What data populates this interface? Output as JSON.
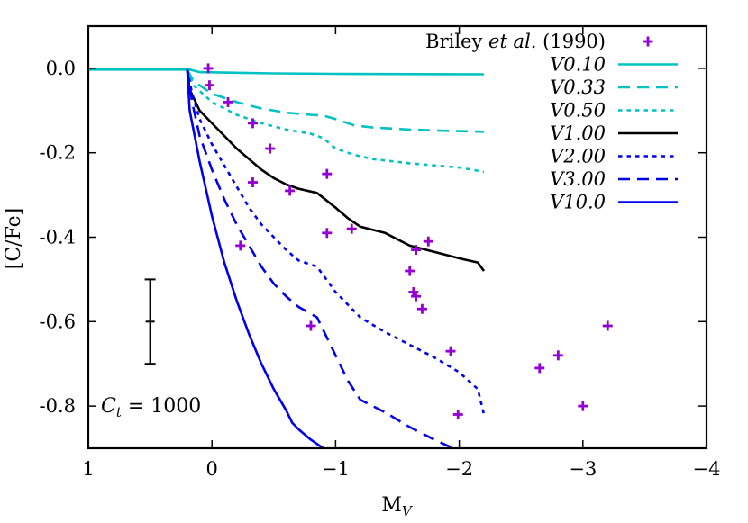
{
  "chart_data": {
    "type": "line",
    "xlabel": "M",
    "xlabel_sub": "V",
    "ylabel": "[C/Fe]",
    "xlim": [
      1,
      -4
    ],
    "ylim": [
      -0.9,
      0.1
    ],
    "x_reversed": true,
    "x_ticks": [
      {
        "value": 1,
        "label": "1"
      },
      {
        "value": 0,
        "label": "0"
      },
      {
        "value": -1,
        "label": "−1"
      },
      {
        "value": -2,
        "label": "−2"
      },
      {
        "value": -3,
        "label": "−3"
      },
      {
        "value": -4,
        "label": "−4"
      }
    ],
    "y_ticks": [
      {
        "value": 0.0,
        "label": "0.0"
      },
      {
        "value": -0.2,
        "label": "-0.2"
      },
      {
        "value": -0.4,
        "label": "-0.4"
      },
      {
        "value": -0.6,
        "label": "-0.6"
      },
      {
        "value": -0.8,
        "label": "-0.8"
      }
    ],
    "grid": false,
    "legend_position": "top-right",
    "annotation": {
      "symbol": "C",
      "subscript": "t",
      "rest": " = 1000"
    },
    "error_bar": {
      "x": 0.5,
      "y": -0.6,
      "ylow": -0.7,
      "yhigh": -0.5
    },
    "scatter": {
      "name_prefix": "Briley ",
      "name_italic": "et al.",
      "name_suffix": " (1990)",
      "color": "#9400d3",
      "points": [
        [
          0.03,
          0.0
        ],
        [
          0.02,
          -0.04
        ],
        [
          -0.13,
          -0.08
        ],
        [
          -0.33,
          -0.13
        ],
        [
          -0.33,
          -0.27
        ],
        [
          -0.47,
          -0.19
        ],
        [
          -0.23,
          -0.42
        ],
        [
          -0.63,
          -0.29
        ],
        [
          -0.93,
          -0.25
        ],
        [
          -0.93,
          -0.39
        ],
        [
          -1.13,
          -0.38
        ],
        [
          -0.8,
          -0.61
        ],
        [
          -1.6,
          -0.48
        ],
        [
          -1.63,
          -0.53
        ],
        [
          -1.65,
          -0.54
        ],
        [
          -1.65,
          -0.43
        ],
        [
          -1.7,
          -0.57
        ],
        [
          -1.75,
          -0.41
        ],
        [
          -1.93,
          -0.67
        ],
        [
          -1.99,
          -0.82
        ],
        [
          -2.65,
          -0.71
        ],
        [
          -2.8,
          -0.68
        ],
        [
          -3.0,
          -0.8
        ],
        [
          -3.2,
          -0.61
        ]
      ]
    },
    "series": [
      {
        "name": "V0.10",
        "color": "#00c2c2",
        "dash": "solid",
        "points": [
          [
            1.0,
            -0.003
          ],
          [
            0.2,
            -0.003
          ],
          [
            0.18,
            -0.003
          ],
          [
            0.1,
            -0.009
          ],
          [
            -0.5,
            -0.012
          ],
          [
            -1.0,
            -0.013
          ],
          [
            -2.2,
            -0.014
          ]
        ]
      },
      {
        "name": "V0.33",
        "color": "#00c2c2",
        "dash": "dashed",
        "points": [
          [
            0.2,
            -0.003
          ],
          [
            0.15,
            -0.03
          ],
          [
            0.0,
            -0.06
          ],
          [
            -0.2,
            -0.08
          ],
          [
            -0.4,
            -0.095
          ],
          [
            -0.6,
            -0.105
          ],
          [
            -0.8,
            -0.11
          ],
          [
            -0.9,
            -0.112
          ],
          [
            -1.0,
            -0.12
          ],
          [
            -1.15,
            -0.135
          ],
          [
            -1.3,
            -0.14
          ],
          [
            -1.6,
            -0.145
          ],
          [
            -1.9,
            -0.148
          ],
          [
            -2.2,
            -0.15
          ]
        ]
      },
      {
        "name": "V0.50",
        "color": "#00c2c2",
        "dash": "dotted",
        "points": [
          [
            0.2,
            -0.003
          ],
          [
            0.15,
            -0.04
          ],
          [
            0.0,
            -0.08
          ],
          [
            -0.2,
            -0.11
          ],
          [
            -0.4,
            -0.13
          ],
          [
            -0.6,
            -0.145
          ],
          [
            -0.8,
            -0.155
          ],
          [
            -0.9,
            -0.165
          ],
          [
            -1.0,
            -0.19
          ],
          [
            -1.15,
            -0.205
          ],
          [
            -1.3,
            -0.215
          ],
          [
            -1.6,
            -0.225
          ],
          [
            -2.0,
            -0.235
          ],
          [
            -2.2,
            -0.245
          ]
        ]
      },
      {
        "name": "V1.00",
        "color": "#000000",
        "dash": "solid",
        "points": [
          [
            0.2,
            -0.003
          ],
          [
            0.18,
            -0.05
          ],
          [
            0.1,
            -0.1
          ],
          [
            0.0,
            -0.13
          ],
          [
            -0.1,
            -0.16
          ],
          [
            -0.2,
            -0.19
          ],
          [
            -0.3,
            -0.215
          ],
          [
            -0.4,
            -0.24
          ],
          [
            -0.5,
            -0.26
          ],
          [
            -0.6,
            -0.275
          ],
          [
            -0.7,
            -0.285
          ],
          [
            -0.85,
            -0.295
          ],
          [
            -1.0,
            -0.33
          ],
          [
            -1.1,
            -0.355
          ],
          [
            -1.2,
            -0.375
          ],
          [
            -1.4,
            -0.39
          ],
          [
            -1.6,
            -0.42
          ],
          [
            -1.8,
            -0.435
          ],
          [
            -2.0,
            -0.45
          ],
          [
            -2.15,
            -0.46
          ],
          [
            -2.2,
            -0.48
          ]
        ]
      },
      {
        "name": "V2.00",
        "color": "#0000ee",
        "dash": "dotted",
        "points": [
          [
            0.2,
            -0.003
          ],
          [
            0.16,
            -0.06
          ],
          [
            0.1,
            -0.12
          ],
          [
            0.0,
            -0.18
          ],
          [
            -0.1,
            -0.23
          ],
          [
            -0.2,
            -0.28
          ],
          [
            -0.3,
            -0.33
          ],
          [
            -0.4,
            -0.37
          ],
          [
            -0.5,
            -0.4
          ],
          [
            -0.6,
            -0.43
          ],
          [
            -0.7,
            -0.455
          ],
          [
            -0.85,
            -0.47
          ],
          [
            -1.0,
            -0.53
          ],
          [
            -1.2,
            -0.59
          ],
          [
            -1.4,
            -0.625
          ],
          [
            -1.6,
            -0.655
          ],
          [
            -1.8,
            -0.685
          ],
          [
            -2.0,
            -0.72
          ],
          [
            -2.15,
            -0.76
          ],
          [
            -2.2,
            -0.82
          ]
        ]
      },
      {
        "name": "V3.00",
        "color": "#0000ee",
        "dash": "dashed",
        "points": [
          [
            0.2,
            -0.003
          ],
          [
            0.16,
            -0.08
          ],
          [
            0.1,
            -0.16
          ],
          [
            0.0,
            -0.24
          ],
          [
            -0.1,
            -0.31
          ],
          [
            -0.2,
            -0.37
          ],
          [
            -0.3,
            -0.42
          ],
          [
            -0.4,
            -0.47
          ],
          [
            -0.5,
            -0.51
          ],
          [
            -0.6,
            -0.54
          ],
          [
            -0.7,
            -0.565
          ],
          [
            -0.85,
            -0.59
          ],
          [
            -1.0,
            -0.68
          ],
          [
            -1.1,
            -0.74
          ],
          [
            -1.2,
            -0.785
          ],
          [
            -1.4,
            -0.815
          ],
          [
            -1.6,
            -0.85
          ],
          [
            -1.8,
            -0.88
          ],
          [
            -1.95,
            -0.9
          ]
        ]
      },
      {
        "name": "V10.0",
        "color": "#0000ee",
        "dash": "solid",
        "points": [
          [
            0.2,
            -0.003
          ],
          [
            0.18,
            -0.1
          ],
          [
            0.1,
            -0.22
          ],
          [
            0.0,
            -0.35
          ],
          [
            -0.1,
            -0.46
          ],
          [
            -0.2,
            -0.55
          ],
          [
            -0.3,
            -0.63
          ],
          [
            -0.4,
            -0.7
          ],
          [
            -0.5,
            -0.76
          ],
          [
            -0.6,
            -0.81
          ],
          [
            -0.65,
            -0.84
          ],
          [
            -0.7,
            -0.855
          ],
          [
            -0.8,
            -0.88
          ],
          [
            -0.9,
            -0.9
          ]
        ]
      }
    ]
  }
}
